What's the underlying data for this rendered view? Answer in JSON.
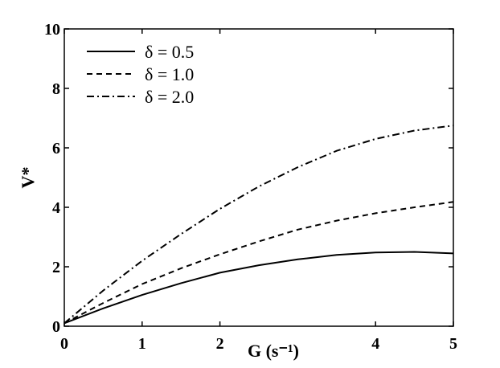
{
  "chart_data": {
    "type": "line",
    "title": "",
    "xlabel": "G (s⁻¹)",
    "ylabel": "V*",
    "xlim": [
      0,
      5
    ],
    "ylim": [
      0,
      10
    ],
    "xticks": [
      "0",
      "1",
      "2",
      "4",
      "5"
    ],
    "yticks": [
      "0",
      "2",
      "4",
      "6",
      "8",
      "10"
    ],
    "grid": false,
    "legend_position": "top-left",
    "series": [
      {
        "name": "δ = 0.5",
        "style": "solid",
        "x": [
          0,
          0.5,
          1,
          1.5,
          2,
          2.5,
          3,
          3.5,
          4,
          4.5,
          5
        ],
        "y": [
          0.1,
          0.6,
          1.05,
          1.45,
          1.8,
          2.05,
          2.25,
          2.4,
          2.48,
          2.5,
          2.45
        ]
      },
      {
        "name": "δ = 1.0",
        "style": "dashed",
        "x": [
          0,
          0.5,
          1,
          1.5,
          2,
          2.5,
          3,
          3.5,
          4,
          4.5,
          5
        ],
        "y": [
          0.1,
          0.78,
          1.42,
          1.95,
          2.42,
          2.85,
          3.25,
          3.55,
          3.8,
          4.0,
          4.18
        ]
      },
      {
        "name": "δ = 2.0",
        "style": "dashdot",
        "x": [
          0,
          0.5,
          1,
          1.5,
          2,
          2.5,
          3,
          3.5,
          4,
          4.5,
          5
        ],
        "y": [
          0.1,
          1.2,
          2.2,
          3.1,
          3.95,
          4.7,
          5.35,
          5.9,
          6.3,
          6.58,
          6.75
        ]
      }
    ]
  }
}
